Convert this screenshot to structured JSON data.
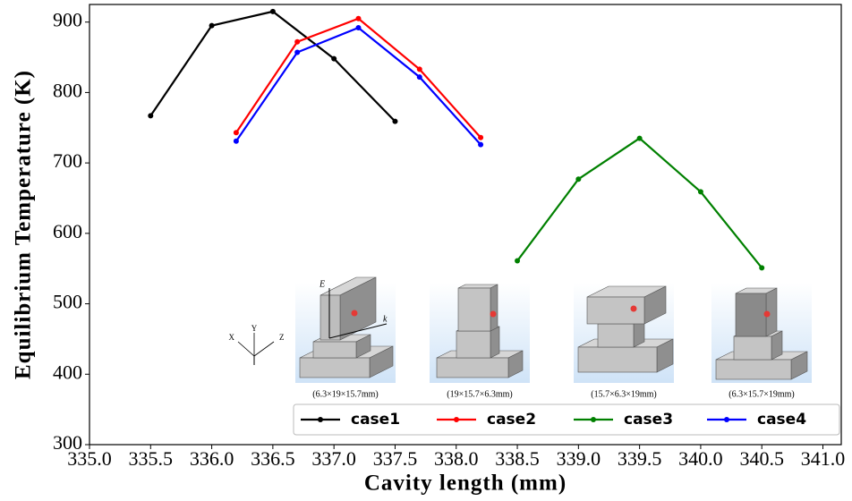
{
  "chart_data": {
    "type": "line",
    "xlabel": "Cavity length (mm)",
    "ylabel": "Equilibrium Temperature (K)",
    "xlim": [
      335.0,
      341.15
    ],
    "ylim": [
      300,
      925
    ],
    "xticks": [
      {
        "value": 335.0,
        "label": "335.0"
      },
      {
        "value": 335.5,
        "label": "335.5"
      },
      {
        "value": 336.0,
        "label": "336.0"
      },
      {
        "value": 336.5,
        "label": "336.5"
      },
      {
        "value": 337.0,
        "label": "337.0"
      },
      {
        "value": 337.5,
        "label": "337.5"
      },
      {
        "value": 338.0,
        "label": "338.0"
      },
      {
        "value": 338.5,
        "label": "338.5"
      },
      {
        "value": 339.0,
        "label": "339.0"
      },
      {
        "value": 339.5,
        "label": "339.5"
      },
      {
        "value": 340.0,
        "label": "340.0"
      },
      {
        "value": 340.5,
        "label": "340.5"
      },
      {
        "value": 341.0,
        "label": "341.0"
      }
    ],
    "yticks": [
      300,
      400,
      500,
      600,
      700,
      800,
      900
    ],
    "series": [
      {
        "name": "case1",
        "color": "#000000",
        "x": [
          335.5,
          336.0,
          336.5,
          337.0,
          337.5
        ],
        "values": [
          767,
          895,
          915,
          848,
          759
        ]
      },
      {
        "name": "case2",
        "color": "#ff0000",
        "x": [
          336.2,
          336.7,
          337.2,
          337.7,
          338.2
        ],
        "values": [
          743,
          872,
          905,
          833,
          736
        ]
      },
      {
        "name": "case3",
        "color": "#008000",
        "x": [
          338.5,
          339.0,
          339.5,
          340.0,
          340.5
        ],
        "values": [
          561,
          677,
          735,
          659,
          551
        ]
      },
      {
        "name": "case4",
        "color": "#0000ff",
        "x": [
          336.2,
          336.7,
          337.2,
          337.7,
          338.2
        ],
        "values": [
          731,
          857,
          892,
          822,
          726
        ]
      }
    ],
    "legend": "lower right",
    "insets": [
      {
        "caption": "(6.3×19×15.7mm)"
      },
      {
        "caption": "(19×15.7×6.3mm)"
      },
      {
        "caption": "(15.7×6.3×19mm)"
      },
      {
        "caption": "(6.3×15.7×19mm)"
      }
    ],
    "annotations": {
      "field": "E",
      "wave": "k",
      "axes": [
        "X",
        "Y",
        "Z"
      ]
    }
  }
}
